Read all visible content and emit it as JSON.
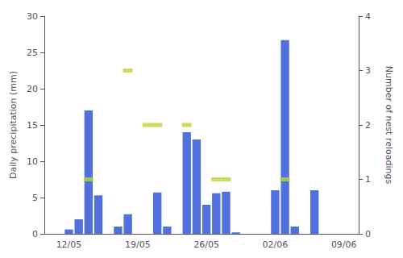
{
  "chart_data": {
    "type": "bar",
    "ylabel": "Daily precipitation (mm)",
    "y2label": "Number of nest reloadings",
    "categories": [
      null,
      null,
      "12/05",
      null,
      null,
      null,
      null,
      null,
      null,
      "19/05",
      null,
      null,
      null,
      null,
      null,
      null,
      "26/05",
      null,
      null,
      null,
      null,
      null,
      null,
      "02/06",
      null,
      null,
      null,
      null,
      null,
      null,
      "09/06",
      null
    ],
    "series": [
      {
        "type": "bar",
        "values": [
          0,
          0,
          0.6,
          2.0,
          17.0,
          5.3,
          0,
          1.0,
          2.7,
          0,
          0,
          5.7,
          1.0,
          0,
          14.0,
          13.0,
          4.0,
          5.6,
          5.8,
          0.2,
          0,
          0,
          0,
          6.0,
          26.7,
          1.0,
          0,
          6.0,
          0,
          0,
          null,
          null
        ]
      },
      {
        "type": "scatter",
        "marker": "rect",
        "axis": "y2",
        "values": [
          null,
          null,
          null,
          null,
          1,
          null,
          null,
          null,
          3,
          null,
          2,
          2,
          null,
          null,
          2,
          null,
          null,
          1,
          1,
          null,
          null,
          null,
          null,
          null,
          1,
          null,
          null,
          null,
          null,
          null,
          null,
          null
        ]
      }
    ],
    "ylim": [
      0,
      30
    ],
    "yticks": [
      0,
      5,
      10,
      15,
      20,
      25,
      30
    ],
    "y2lim": [
      0,
      4
    ],
    "y2ticks": [
      0,
      1,
      2,
      3,
      4
    ],
    "grid": false
  }
}
